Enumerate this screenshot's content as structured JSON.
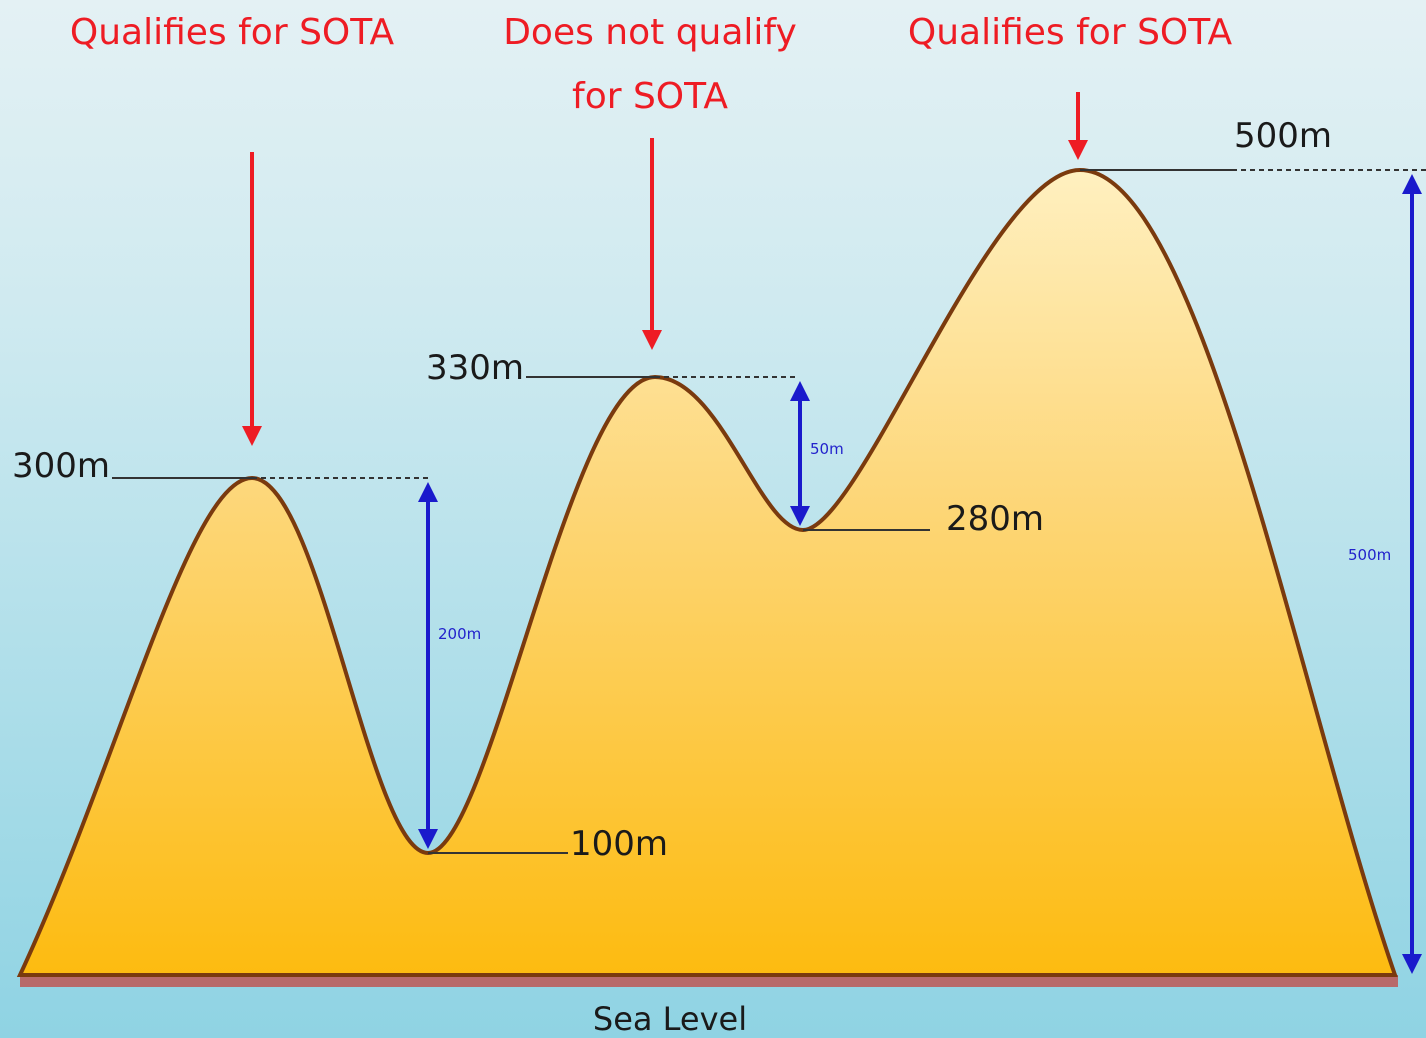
{
  "peak_notes": [
    [
      "Qualifies for SOTA"
    ],
    [
      "Does not qualify",
      "for SOTA"
    ],
    [
      "Qualifies for SOTA"
    ]
  ],
  "elevations": [
    "300m",
    "330m",
    "280m",
    "100m",
    "500m"
  ],
  "prominences": [
    "200m",
    "50m",
    "500m"
  ],
  "baseline": "Sea Level"
}
